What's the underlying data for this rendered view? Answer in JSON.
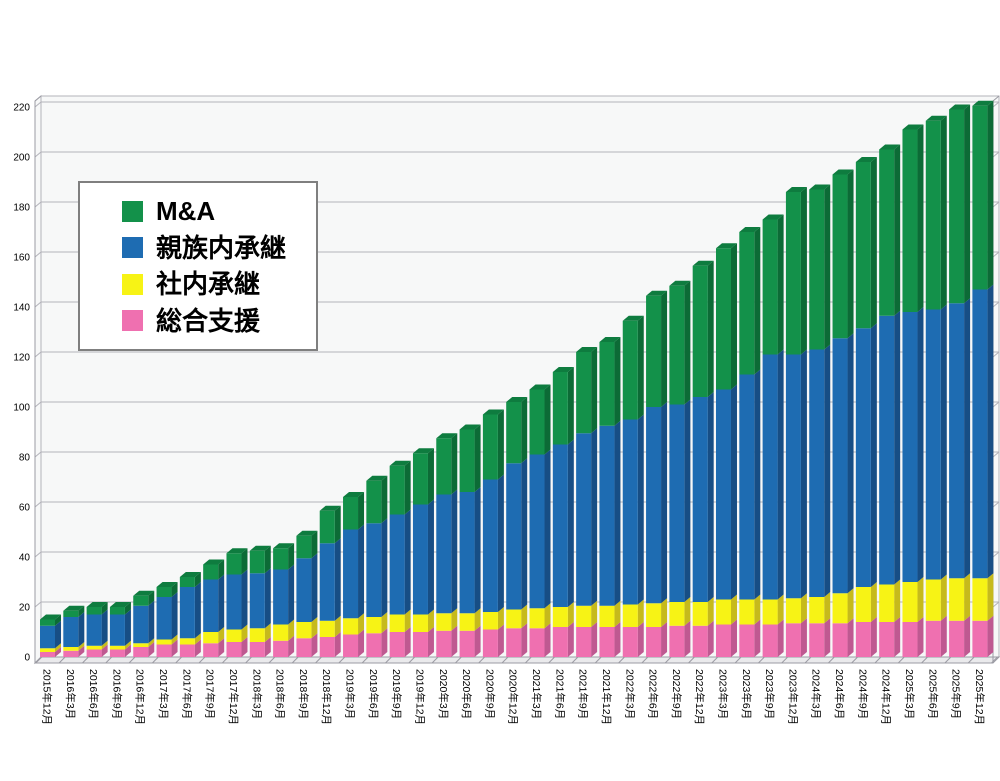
{
  "chart_data": {
    "type": "bar",
    "subtype": "stacked-3d-column",
    "title": "",
    "values_are": "segment_heights",
    "categories": [
      "2015年12月",
      "2016年3月",
      "2016年6月",
      "2016年9月",
      "2016年12月",
      "2017年3月",
      "2017年6月",
      "2017年9月",
      "2017年12月",
      "2018年3月",
      "2018年6月",
      "2018年9月",
      "2018年12月",
      "2019年3月",
      "2019年6月",
      "2019年9月",
      "2019年12月",
      "2020年3月",
      "2020年6月",
      "2020年9月",
      "2020年12月",
      "2021年3月",
      "2021年6月",
      "2021年9月",
      "2021年12月",
      "2022年3月",
      "2022年6月",
      "2022年9月",
      "2022年12月",
      "2023年3月",
      "2023年6月",
      "2023年9月",
      "2023年12月",
      "2024年3月",
      "2024年6月",
      "2024年9月",
      "2024年12月",
      "2025年3月",
      "2025年6月",
      "2025年9月",
      "2025年12月"
    ],
    "series": [
      {
        "name": "M&A",
        "key": "ma",
        "color": "#13914a",
        "side_color": "#0c6b36",
        "top_color": "#0e7c3f",
        "values": [
          2.5,
          2.5,
          3,
          3,
          4,
          4,
          4,
          6,
          8.5,
          9,
          8.5,
          9,
          13,
          13,
          17,
          19.5,
          20.5,
          22.5,
          25,
          26,
          24.5,
          26,
          29,
          32.5,
          33.5,
          39.5,
          44.5,
          47.5,
          52.5,
          56.5,
          57,
          54,
          65,
          64,
          65.5,
          66.5,
          66.5,
          73,
          75.5,
          77.5,
          73.5
        ]
      },
      {
        "name": "親族内承継",
        "key": "family",
        "color": "#1e6cb2",
        "side_color": "#174e85",
        "top_color": "#195c99",
        "values": [
          9,
          12,
          12.5,
          12.5,
          15,
          17,
          20.5,
          21,
          22,
          22,
          22,
          25.5,
          31,
          35.5,
          37.5,
          40,
          44,
          47.5,
          48.5,
          53,
          58.5,
          61.5,
          65,
          69,
          72,
          74,
          78.5,
          79,
          82,
          84,
          90,
          98,
          97.5,
          99,
          102,
          103.5,
          107.5,
          108,
          108,
          110,
          115.5
        ]
      },
      {
        "name": "社内承継",
        "key": "internal",
        "color": "#f7f315",
        "side_color": "#c6ba1c",
        "top_color": "#d9cd1a",
        "values": [
          1.5,
          1.5,
          1.5,
          1.5,
          1.5,
          2,
          2.5,
          4.5,
          5,
          5.5,
          6.5,
          6.5,
          6.5,
          6.5,
          6.5,
          7,
          7,
          7,
          7,
          7,
          7.5,
          8,
          8,
          8.5,
          8.5,
          9,
          9.5,
          9.5,
          9.5,
          10,
          10,
          10,
          10,
          10.5,
          12,
          14,
          15,
          16,
          16.5,
          17,
          17
        ]
      },
      {
        "name": "総合支援",
        "key": "support",
        "color": "#ef70b0",
        "side_color": "#bf5991",
        "top_color": "#d4639f",
        "values": [
          2,
          2.5,
          3,
          3,
          4,
          5,
          5,
          5.5,
          6,
          6,
          6.5,
          7.5,
          8,
          9,
          9.5,
          10,
          10,
          10.5,
          10.5,
          11,
          11.5,
          11.5,
          12,
          12,
          12,
          12,
          12,
          12.5,
          12.5,
          13,
          13,
          13,
          13.5,
          13.5,
          13.5,
          14,
          14,
          14,
          14.5,
          14.5,
          14.5
        ]
      }
    ],
    "stack_order_bottom_to_top": [
      "support",
      "internal",
      "family",
      "ma"
    ],
    "legend": {
      "position": "upper-left",
      "labels": [
        "M&A",
        "親族内承継",
        "社内承継",
        "総合支援"
      ]
    },
    "y_axis": {
      "min": 0,
      "max": 220,
      "tick_interval": 20,
      "ticks": [
        0,
        20,
        40,
        60,
        80,
        100,
        120,
        140,
        160,
        180,
        200,
        220
      ]
    },
    "x_axis": {
      "label_rotation_deg": 90
    },
    "grid": true,
    "colors": {
      "plot_bg": "#f7f8f8",
      "grid": "#b3b3ba",
      "frame": "#9b9ba3",
      "floor": "#eaeaec",
      "text": "#000000"
    }
  }
}
